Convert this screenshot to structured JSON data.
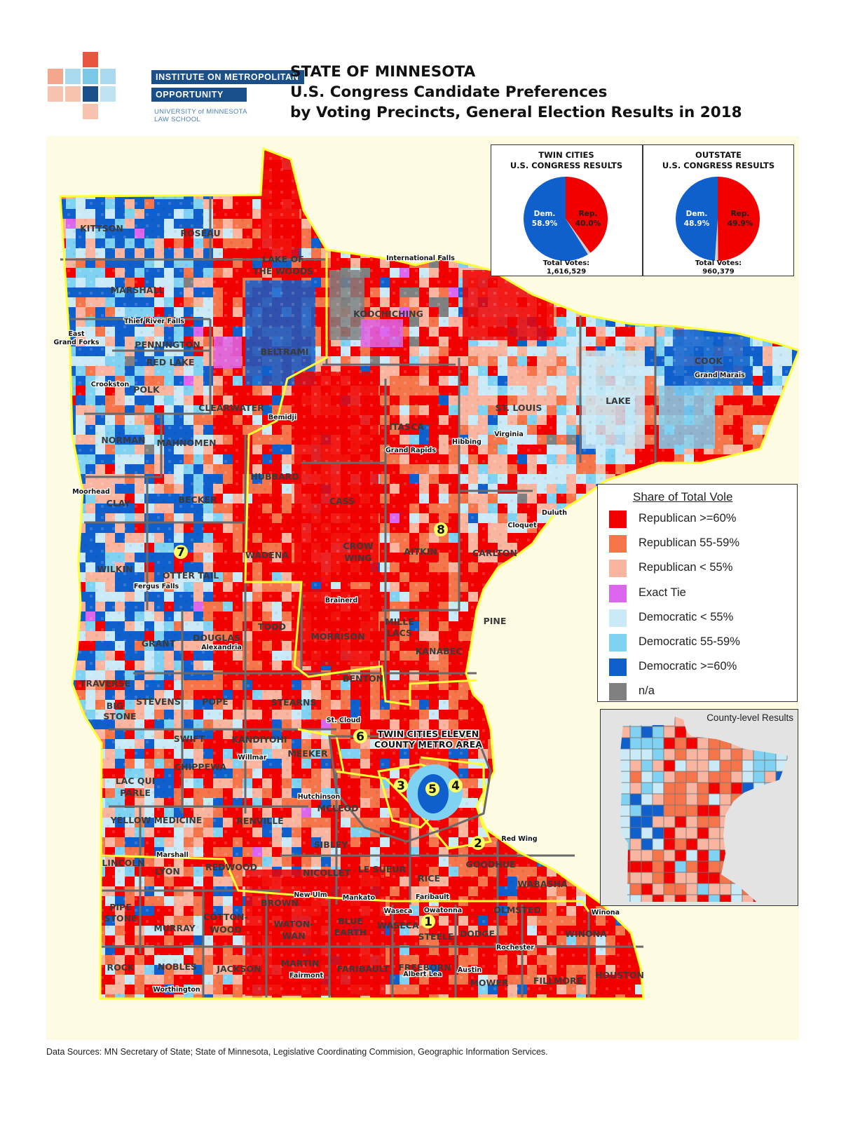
{
  "logo": {
    "line1": "INSTITUTE ON METROPOLITAN",
    "line2": "OPPORTUNITY",
    "line3": "UNIVERSITY of MINNESOTA LAW SCHOOL"
  },
  "title": {
    "line1": "STATE OF MINNESOTA",
    "line2": "U.S. Congress Candidate Preferences",
    "line3": "by Voting Precincts, General Election Results in 2018"
  },
  "colors": {
    "rep_60": "#f20000",
    "rep_55": "#f5744a",
    "rep_lt55": "#f9b5a0",
    "tie": "#dd66ee",
    "dem_lt55": "#c9eaf6",
    "dem_55": "#7fd2f2",
    "dem_60": "#0f5fcc",
    "na": "#808080",
    "background": "#fdfbe2",
    "district_border": "#ffff33",
    "county_border": "#6a6a6a"
  },
  "pies": [
    {
      "heading1": "TWIN CITIES",
      "heading2": "U.S. CONGRESS RESULTS",
      "dem_label": "Dem.",
      "dem_pct": "58.9%",
      "rep_label": "Rep.",
      "rep_pct": "40.0%",
      "total_label": "Total Votes:",
      "total_votes": "1,616,529",
      "shares": {
        "dem": 58.9,
        "rep": 40.0
      }
    },
    {
      "heading1": "OUTSTATE",
      "heading2": "U.S. CONGRESS RESULTS",
      "dem_label": "Dem.",
      "dem_pct": "48.9%",
      "rep_label": "Rep.",
      "rep_pct": "49.9%",
      "total_label": "Total Votes:",
      "total_votes": "960,379",
      "shares": {
        "dem": 48.9,
        "rep": 49.9
      }
    }
  ],
  "legend": {
    "title": "Share of Total Vole",
    "items": [
      {
        "label": "Republican >=60%",
        "color": "#f20000"
      },
      {
        "label": "Republican 55-59%",
        "color": "#f5744a"
      },
      {
        "label": "Republican < 55%",
        "color": "#f9b5a0"
      },
      {
        "label": "Exact Tie",
        "color": "#dd66ee"
      },
      {
        "label": "Democratic < 55%",
        "color": "#c9eaf6"
      },
      {
        "label": "Democratic 55-59%",
        "color": "#7fd2f2"
      },
      {
        "label": "Democratic >=60%",
        "color": "#0f5fcc"
      },
      {
        "label": "n/a",
        "color": "#808080"
      }
    ]
  },
  "inset": {
    "title": "County-level Results"
  },
  "footer": "Data Sources:  MN Secretary of State; State of Minnesota, Legislative Coordinating Commision, Geographic Information Services.",
  "map": {
    "counties": [
      "KITTSON",
      "ROSEAU",
      "LAKE OF",
      "THE WOODS",
      "MARSHALL",
      "KOOCHICHING",
      "PENNINGTON",
      "RED LAKE",
      "BELTRAMI",
      "POLK",
      "CLEARWATER",
      "NORMAN",
      "MAHNOMEN",
      "ITASCA",
      "ST. LOUIS",
      "LAKE",
      "COOK",
      "CLAY",
      "BECKER",
      "HUBBARD",
      "CASS",
      "WADENA",
      "CROW",
      "WING",
      "AITKIN",
      "CARLTON",
      "WILKIN",
      "OTTER TAIL",
      "TODD",
      "MORRISON",
      "MILLE",
      "LACS",
      "PINE",
      "GRANT",
      "DOUGLAS",
      "KANABEC",
      "TRAVERSE",
      "BIG",
      "STONE",
      "STEVENS",
      "POPE",
      "STEARNS",
      "BENTON",
      "SWIFT",
      "KANDIYOHI",
      "MEEKER",
      "CHIPPEWA",
      "LAC QUI",
      "PARLE",
      "MCLEOD",
      "YELLOW MEDICINE",
      "RENVILLE",
      "SIBLEY",
      "LINCOLN",
      "LYON",
      "REDWOOD",
      "NICOLLET",
      "LE SUEUR",
      "RICE",
      "GOODHUE",
      "WABASHA",
      "PIPE",
      "STONE",
      "MURRAY",
      "COTTON-",
      "WOOD",
      "BROWN",
      "WATON-",
      "WAN",
      "BLUE",
      "EARTH",
      "WASECA",
      "STEELE",
      "DODGE",
      "OLMSTED",
      "WINONA",
      "ROCK",
      "NOBLES",
      "JACKSON",
      "MARTIN",
      "FARIBAULT",
      "FREEBORN",
      "MOWER",
      "FILLMORE",
      "HOUSTON"
    ],
    "cities": [
      "International Falls",
      "East",
      "Grand Forks",
      "Thief River Falls",
      "Crookston",
      "Bemidji",
      "Grand Rapids",
      "Hibbing",
      "Virginia",
      "Grand Marais",
      "Moorhead",
      "Duluth",
      "Cloquet",
      "Brainerd",
      "Fergus Falls",
      "Alexandria",
      "St. Cloud",
      "Willmar",
      "Hutchinson",
      "Red Wing",
      "Marshall",
      "New Ulm",
      "Mankato",
      "Faribault",
      "Waseca",
      "Owatonna",
      "Winona",
      "Rochester",
      "Worthington",
      "Fairmont",
      "Albert Lea",
      "Austin"
    ],
    "metro_label1": "TWIN CITIES ELEVEN",
    "metro_label2": "COUNTY METRO AREA",
    "districts": [
      "1",
      "2",
      "3",
      "4",
      "5",
      "6",
      "7",
      "8"
    ]
  }
}
